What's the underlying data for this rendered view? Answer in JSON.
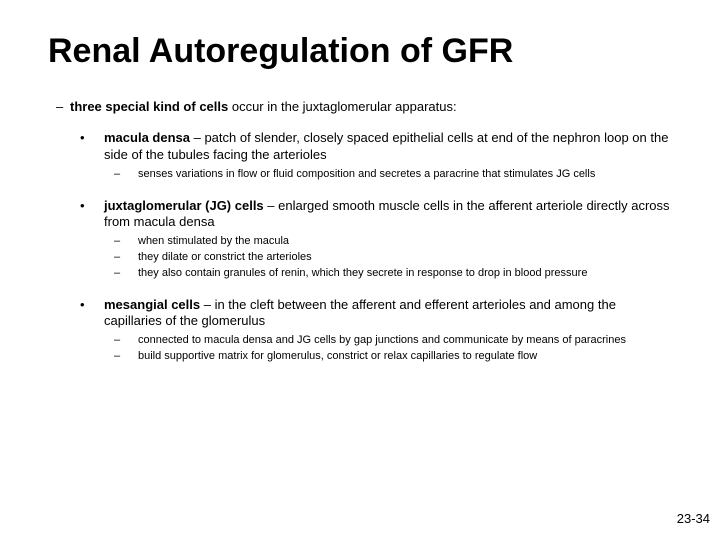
{
  "title": "Renal Autoregulation of GFR",
  "intro_bold": "three special kind of cells",
  "intro_rest": " occur in the juxtaglomerular apparatus:",
  "macula_bold": "macula densa",
  "macula_rest": " – patch of slender, closely spaced epithelial cells at end of the nephron loop on the side of the tubules facing the arterioles",
  "macula_sub1": "senses variations in flow or fluid composition and secretes a paracrine that stimulates JG cells",
  "jg_bold": "juxtaglomerular (JG) cells",
  "jg_rest": " – enlarged smooth muscle cells in the afferent arteriole directly across from macula densa",
  "jg_sub1": "when stimulated by the macula",
  "jg_sub2": "they dilate or constrict the arterioles",
  "jg_sub3": "they also contain granules of renin, which they secrete in response to drop in blood pressure",
  "mes_bold": "mesangial cells",
  "mes_rest": " – in the cleft between the afferent and efferent arterioles and among the capillaries of the glomerulus",
  "mes_sub1": "connected to macula densa and JG cells by gap junctions and communicate by means of paracrines",
  "mes_sub2": "build supportive matrix for glomerulus, constrict or relax capillaries to regulate flow",
  "page_num": "23-34"
}
